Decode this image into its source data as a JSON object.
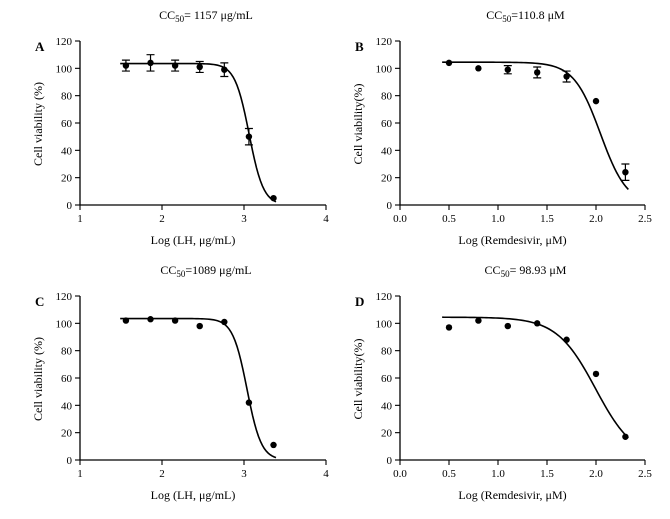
{
  "chart_data": [
    {
      "type": "scatter",
      "panel": "A",
      "title": "CC50= 1157 μg/mL",
      "title_parts": {
        "prefix": "CC",
        "sub": "50",
        "suffix": "= 1157 μg/mL"
      },
      "xlabel": "Log (LH, μg/mL)",
      "ylabel": "Cell viability (%)",
      "xlim": [
        1,
        4
      ],
      "ylim": [
        0,
        120
      ],
      "xticks": [
        "1",
        "2",
        "3",
        "4"
      ],
      "yticks": [
        "0",
        "20",
        "40",
        "60",
        "80",
        "100",
        "120"
      ],
      "series": [
        {
          "x": [
            1.56,
            1.86,
            2.16,
            2.46,
            2.76,
            3.06,
            3.36
          ],
          "y": [
            102,
            104,
            102,
            101,
            99,
            50,
            5
          ],
          "err": [
            4,
            6,
            4,
            4,
            5,
            6,
            0
          ]
        }
      ],
      "fit": {
        "top": 103.5,
        "bottom": 0,
        "log_cc50": 3.063,
        "hill": 5
      }
    },
    {
      "type": "scatter",
      "panel": "B",
      "title": "CC50=110.8 μM",
      "title_parts": {
        "prefix": "CC",
        "sub": "50",
        "suffix": "=110.8 μM"
      },
      "xlabel": "Log (Remdesivir, μM)",
      "ylabel": "Cell viability(%)",
      "xlim": [
        0,
        2.5
      ],
      "ylim": [
        0,
        120
      ],
      "xticks": [
        "0.0",
        "0.5",
        "1.0",
        "1.5",
        "2.0",
        "2.5"
      ],
      "yticks": [
        "0",
        "20",
        "40",
        "60",
        "80",
        "100",
        "120"
      ],
      "series": [
        {
          "x": [
            0.5,
            0.8,
            1.1,
            1.4,
            1.7,
            2.0,
            2.3
          ],
          "y": [
            104,
            100,
            99,
            97,
            94,
            76,
            24
          ],
          "err": [
            0,
            0,
            3,
            4,
            4,
            0,
            6
          ]
        }
      ],
      "fit": {
        "top": 104.5,
        "bottom": 0,
        "log_cc50": 2.045,
        "hill": 3.2
      }
    },
    {
      "type": "scatter",
      "panel": "C",
      "title": "CC50=1089 μg/mL",
      "title_parts": {
        "prefix": "CC",
        "sub": "50",
        "suffix": "=1089 μg/mL"
      },
      "xlabel": "Log (LH, μg/mL)",
      "ylabel": "Cell viability (%)",
      "xlim": [
        1,
        4
      ],
      "ylim": [
        0,
        120
      ],
      "xticks": [
        "1",
        "2",
        "3",
        "4"
      ],
      "yticks": [
        "0",
        "20",
        "40",
        "60",
        "80",
        "100",
        "120"
      ],
      "series": [
        {
          "x": [
            1.56,
            1.86,
            2.16,
            2.46,
            2.76,
            3.06,
            3.36
          ],
          "y": [
            102,
            103,
            102,
            98,
            101,
            42,
            11
          ],
          "err": [
            0,
            0,
            0,
            0,
            0,
            0,
            0
          ]
        }
      ],
      "fit": {
        "top": 103.5,
        "bottom": 0,
        "log_cc50": 3.037,
        "hill": 5
      }
    },
    {
      "type": "scatter",
      "panel": "D",
      "title": "CC50= 98.93 μM",
      "title_parts": {
        "prefix": "CC",
        "sub": "50",
        "suffix": "= 98.93 μM"
      },
      "xlabel": "Log (Remdesivir, μM)",
      "ylabel": "Cell viability(%)",
      "xlim": [
        0,
        2.5
      ],
      "ylim": [
        0,
        120
      ],
      "xticks": [
        "0.0",
        "0.5",
        "1.0",
        "1.5",
        "2.0",
        "2.5"
      ],
      "yticks": [
        "0",
        "20",
        "40",
        "60",
        "80",
        "100",
        "120"
      ],
      "series": [
        {
          "x": [
            0.5,
            0.8,
            1.1,
            1.4,
            1.7,
            2.0,
            2.3
          ],
          "y": [
            97,
            102,
            98,
            100,
            88,
            63,
            17
          ],
          "err": [
            0,
            0,
            0,
            0,
            0,
            0,
            0
          ]
        }
      ],
      "fit": {
        "top": 104.5,
        "bottom": 0,
        "log_cc50": 1.995,
        "hill": 2.2
      }
    }
  ]
}
